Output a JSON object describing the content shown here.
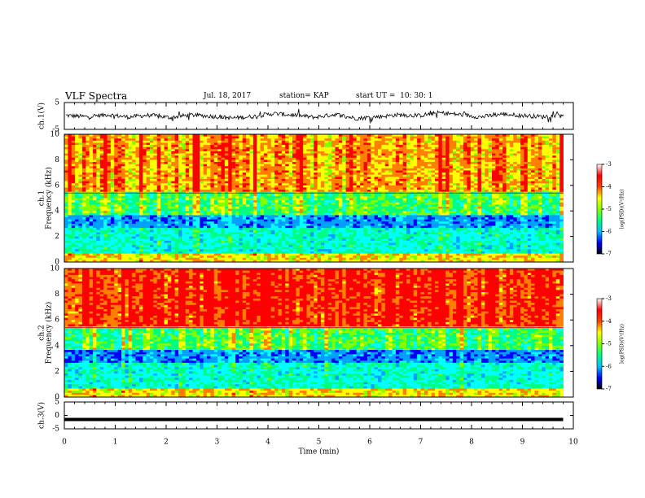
{
  "header": {
    "title": "VLF Spectra",
    "date": "Jul. 18, 2017",
    "station": "station= KAP",
    "start": "start UT =  10: 30: 1"
  },
  "chart_data": [
    {
      "type": "line",
      "panel": "ch1-waveform",
      "ylabel": "ch.1(V)",
      "ylim": [
        -5,
        5
      ],
      "yticks": [
        "5",
        "-5"
      ],
      "xlim": [
        0,
        10
      ],
      "series": [
        {
          "values": [
            0.2,
            -0.3,
            0.5,
            -0.4,
            0.3,
            -0.6,
            0.4,
            -0.1,
            -0.8,
            -0.2,
            0.9,
            0.3,
            -0.5,
            0.6,
            -0.9,
            -0.3,
            0.4,
            0.1,
            1.2,
            0.5,
            -0.4,
            0.7,
            0.2,
            -0.3,
            0.6
          ]
        }
      ]
    },
    {
      "type": "heatmap",
      "panel": "ch1-spectrogram",
      "ylabel": "ch.1\nFrequency (kHz)",
      "ylim": [
        0,
        10
      ],
      "yticks": [
        "0",
        "2",
        "4",
        "6",
        "8",
        "10"
      ],
      "xlim": [
        0,
        10
      ],
      "colorbar": {
        "label": "log(PSD)(V²/Hz)",
        "range": [
          -7,
          -3
        ],
        "ticks": [
          "-3",
          "-4",
          "-5",
          "-6",
          "-7"
        ]
      }
    },
    {
      "type": "heatmap",
      "panel": "ch2-spectrogram",
      "ylabel": "ch.2\nFrequency (kHz)",
      "ylim": [
        0,
        10
      ],
      "yticks": [
        "0",
        "2",
        "4",
        "6",
        "8",
        "10"
      ],
      "xlim": [
        0,
        10
      ],
      "colorbar": {
        "label": "log(PSD)(V²/Hz)",
        "range": [
          -7,
          -3
        ],
        "ticks": [
          "-3",
          "-4",
          "-5",
          "-6",
          "-7"
        ]
      }
    },
    {
      "type": "line",
      "panel": "ch3-waveform",
      "ylabel": "ch.3(V)",
      "ylim": [
        -5,
        5
      ],
      "yticks": [
        "5",
        "0",
        "-5"
      ],
      "xlim": [
        0,
        10
      ],
      "xlabel": "Time (min)",
      "xticks": [
        "0",
        "1",
        "2",
        "3",
        "4",
        "5",
        "6",
        "7",
        "8",
        "9",
        "10"
      ],
      "series": [
        {
          "values": [
            -1.5,
            -1.5
          ]
        }
      ]
    }
  ],
  "colors": {
    "colormap": [
      "#000080",
      "#0000ff",
      "#00a0ff",
      "#00ffff",
      "#00ff80",
      "#80ff00",
      "#ffff00",
      "#ff8000",
      "#ff0000",
      "#ffffff"
    ]
  }
}
